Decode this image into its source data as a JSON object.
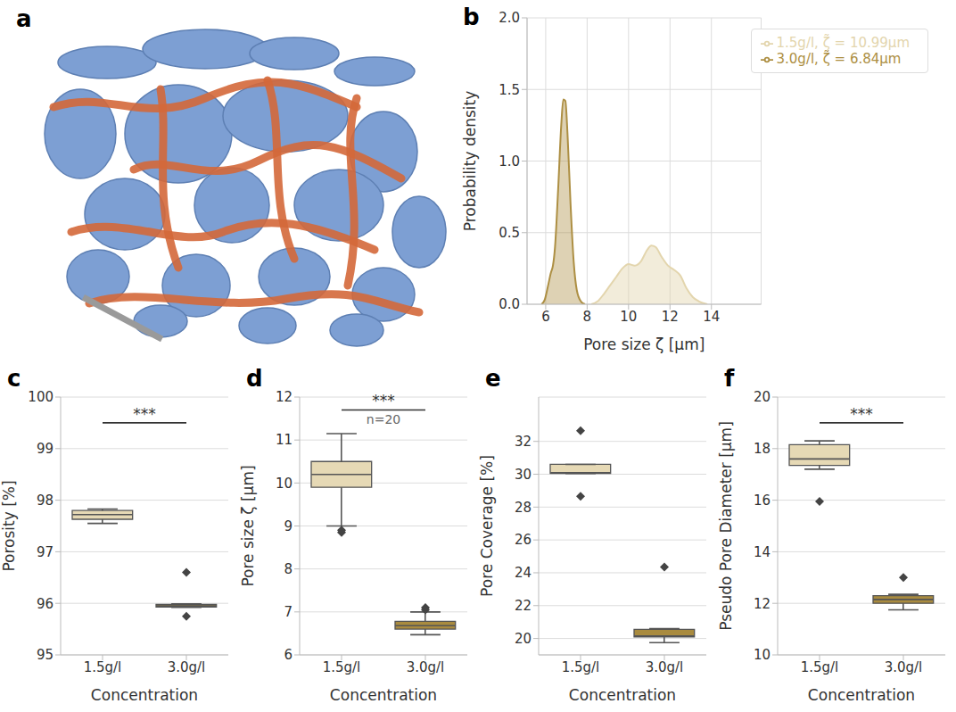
{
  "chart_data": [
    {
      "type": "illustration",
      "panel_label": "a"
    },
    {
      "type": "area",
      "panel_label": "b",
      "x_label": "Pore size ζ [µm]",
      "y_label": "Probability density",
      "xlim": [
        5.1,
        16.4
      ],
      "xticks": [
        6,
        8,
        10,
        12,
        14
      ],
      "ylim": [
        0,
        2
      ],
      "yticks": [
        {
          "value": 0,
          "label": "0.0"
        },
        {
          "value": 0.5,
          "label": "0.5"
        },
        {
          "value": 1,
          "label": "1.0"
        },
        {
          "value": 1.5,
          "label": "1.5"
        },
        {
          "value": 2,
          "label": "2.0"
        }
      ],
      "grid": true,
      "legend": "upper right",
      "series": [
        {
          "name": "1.5g/l, ζ̃ = 10.99µm",
          "color": "#e3d5ad",
          "x": [
            8.2,
            8.5,
            8.8,
            9.1,
            9.4,
            9.7,
            10.0,
            10.3,
            10.6,
            10.9,
            11.1,
            11.3,
            11.6,
            11.9,
            12.2,
            12.5,
            12.8,
            13.1,
            13.4,
            13.8
          ],
          "values": [
            0,
            0.02,
            0.07,
            0.13,
            0.19,
            0.25,
            0.28,
            0.27,
            0.3,
            0.38,
            0.41,
            0.4,
            0.33,
            0.27,
            0.24,
            0.2,
            0.11,
            0.05,
            0.02,
            0
          ]
        },
        {
          "name": "3.0g/l, ζ̃ = 6.84µm",
          "color": "#ad8f43",
          "x": [
            5.8,
            5.95,
            6.1,
            6.25,
            6.35,
            6.45,
            6.6,
            6.75,
            6.85,
            6.95,
            7.05,
            7.2,
            7.35,
            7.5,
            7.7,
            7.9
          ],
          "values": [
            0,
            0.03,
            0.12,
            0.22,
            0.27,
            0.4,
            0.8,
            1.25,
            1.43,
            1.42,
            1.2,
            0.7,
            0.3,
            0.1,
            0.02,
            0
          ]
        }
      ]
    },
    {
      "type": "box",
      "panel_label": "c",
      "x_label": "Concentration",
      "y_label": "Porosity [%]",
      "categories": [
        "1.5g/l",
        "3.0g/l"
      ],
      "colors": [
        "#e6d9b5",
        "#a98b3f"
      ],
      "ylim": [
        95,
        100
      ],
      "yticks": [
        95,
        96,
        97,
        98,
        99,
        100
      ],
      "grid": true,
      "boxes": [
        {
          "whisker_low": 97.55,
          "q1": 97.63,
          "median": 97.72,
          "q3": 97.8,
          "whisker_high": 97.83,
          "outliers": []
        },
        {
          "whisker_low": 95.92,
          "q1": 95.93,
          "median": 95.95,
          "q3": 95.98,
          "whisker_high": 95.99,
          "outliers": [
            96.6,
            95.75
          ]
        }
      ],
      "annotation": {
        "text": "***",
        "y": 99.5
      }
    },
    {
      "type": "box",
      "panel_label": "d",
      "x_label": "Concentration",
      "y_label": "Pore size ζ [µm]",
      "categories": [
        "1.5g/l",
        "3.0g/l"
      ],
      "colors": [
        "#e6d9b5",
        "#a98b3f"
      ],
      "ylim": [
        6,
        12
      ],
      "yticks": [
        6,
        7,
        8,
        9,
        10,
        11,
        12
      ],
      "grid": true,
      "boxes": [
        {
          "whisker_low": 9.0,
          "q1": 9.9,
          "median": 10.2,
          "q3": 10.5,
          "whisker_high": 11.15,
          "outliers": [
            8.85,
            8.9
          ]
        },
        {
          "whisker_low": 6.47,
          "q1": 6.6,
          "median": 6.68,
          "q3": 6.78,
          "whisker_high": 7.0,
          "outliers": [
            7.1,
            7.05
          ]
        }
      ],
      "annotation": {
        "text": "***",
        "note": "n=20",
        "y": 11.7
      }
    },
    {
      "type": "box",
      "panel_label": "e",
      "x_label": "Concentration",
      "y_label": "Pore Coverage [%]",
      "categories": [
        "1.5g/l",
        "3.0g/l"
      ],
      "colors": [
        "#e6d9b5",
        "#a98b3f"
      ],
      "ylim": [
        19,
        34.7
      ],
      "yticks": [
        20,
        22,
        24,
        26,
        28,
        30,
        32
      ],
      "grid": true,
      "boxes": [
        {
          "whisker_low": 30.05,
          "q1": 30.05,
          "median": 30.1,
          "q3": 30.6,
          "whisker_high": 30.6,
          "outliers": [
            32.65,
            28.65
          ]
        },
        {
          "whisker_low": 19.75,
          "q1": 20.1,
          "median": 20.15,
          "q3": 20.55,
          "whisker_high": 20.6,
          "outliers": [
            24.35
          ]
        }
      ]
    },
    {
      "type": "box",
      "panel_label": "f",
      "x_label": "Concentration",
      "y_label": "Pseudo Pore Diameter [µm]",
      "categories": [
        "1.5g/l",
        "3.0g/l"
      ],
      "colors": [
        "#e6d9b5",
        "#a98b3f"
      ],
      "ylim": [
        10,
        20
      ],
      "yticks": [
        10,
        12,
        14,
        16,
        18,
        20
      ],
      "grid": true,
      "boxes": [
        {
          "whisker_low": 17.2,
          "q1": 17.35,
          "median": 17.6,
          "q3": 18.15,
          "whisker_high": 18.3,
          "outliers": [
            15.95
          ]
        },
        {
          "whisker_low": 11.75,
          "q1": 12.0,
          "median": 12.15,
          "q3": 12.3,
          "whisker_high": 12.35,
          "outliers": [
            13.0
          ]
        }
      ],
      "annotation": {
        "text": "***",
        "y": 19.0
      }
    }
  ]
}
